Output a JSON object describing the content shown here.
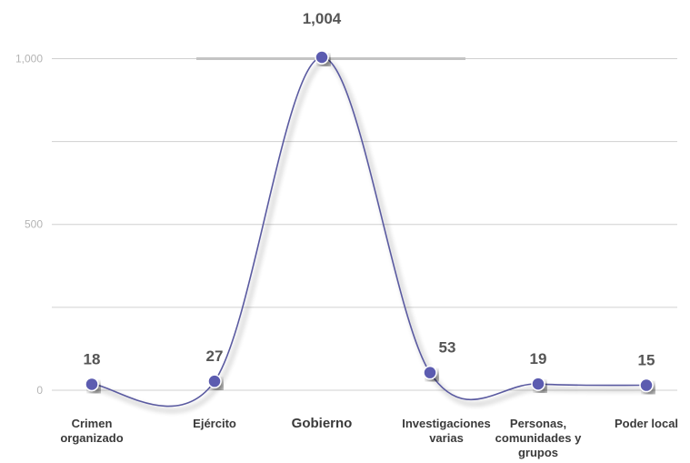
{
  "chart_data": {
    "type": "line",
    "categories": [
      [
        "Crimen",
        "organizado"
      ],
      [
        "Ejército"
      ],
      [
        "Gobierno"
      ],
      [
        "Investigaciones",
        "varias"
      ],
      [
        "Personas,",
        "comunidades y",
        "grupos"
      ],
      [
        "Poder local"
      ]
    ],
    "values": [
      18,
      27,
      1004,
      53,
      19,
      15
    ],
    "value_labels": [
      "18",
      "27",
      "1,004",
      "53",
      "19",
      "15"
    ],
    "y_ticks": [
      0,
      500,
      1000
    ],
    "y_tick_labels": [
      "0",
      "500",
      "1,000"
    ],
    "ylim": [
      0,
      1004
    ],
    "grid": true,
    "highlight_category_index": 2,
    "colors": {
      "line": "#5a5aa0",
      "marker": "#5c5cb0",
      "grid": "#d0d0d0",
      "highlight_band": "#c4c4c4"
    }
  }
}
